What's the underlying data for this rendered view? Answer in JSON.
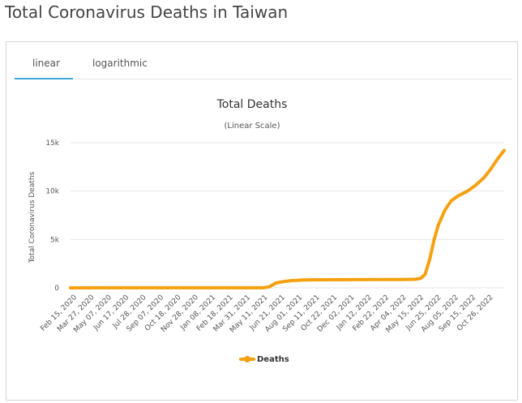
{
  "page": {
    "title": "Total Coronavirus Deaths in Taiwan"
  },
  "tabs": [
    {
      "label": "linear",
      "active": true
    },
    {
      "label": "logarithmic",
      "active": false
    }
  ],
  "chart_data": {
    "type": "line",
    "title": "Total Deaths",
    "subtitle": "(Linear Scale)",
    "ylabel": "Total Coronavirus Deaths",
    "xlabel": "",
    "ylim": [
      0,
      15000
    ],
    "yticks": [
      {
        "value": 0,
        "label": "0"
      },
      {
        "value": 5000,
        "label": "5k"
      },
      {
        "value": 10000,
        "label": "10k"
      },
      {
        "value": 15000,
        "label": "15k"
      }
    ],
    "xlim": [
      "2020-02-15",
      "2022-11-26"
    ],
    "xticks": [
      "Feb 15, 2020",
      "Mar 27, 2020",
      "May 07, 2020",
      "Jun 17, 2020",
      "Jul 28, 2020",
      "Sep 07, 2020",
      "Oct 18, 2020",
      "Nov 28, 2020",
      "Jan 08, 2021",
      "Feb 18, 2021",
      "Mar 31, 2021",
      "May 11, 2021",
      "Jun 21, 2021",
      "Aug 01, 2021",
      "Sep 11, 2021",
      "Oct 22, 2021",
      "Dec 02, 2021",
      "Jan 12, 2022",
      "Feb 22, 2022",
      "Apr 04, 2022",
      "May 15, 2022",
      "Jun 25, 2022",
      "Aug 05, 2022",
      "Sep 15, 2022",
      "Oct 26, 2022"
    ],
    "grid": true,
    "legend_position": "bottom-center",
    "color": "#f5a00f",
    "series": [
      {
        "name": "Deaths",
        "points": [
          {
            "x": "2020-02-15",
            "y": 1
          },
          {
            "x": "2020-06-01",
            "y": 7
          },
          {
            "x": "2021-01-01",
            "y": 7
          },
          {
            "x": "2021-05-11",
            "y": 12
          },
          {
            "x": "2021-05-25",
            "y": 100
          },
          {
            "x": "2021-06-10",
            "y": 500
          },
          {
            "x": "2021-06-25",
            "y": 630
          },
          {
            "x": "2021-07-15",
            "y": 750
          },
          {
            "x": "2021-08-15",
            "y": 820
          },
          {
            "x": "2021-10-01",
            "y": 840
          },
          {
            "x": "2021-12-01",
            "y": 850
          },
          {
            "x": "2022-02-01",
            "y": 853
          },
          {
            "x": "2022-04-01",
            "y": 855
          },
          {
            "x": "2022-05-01",
            "y": 880
          },
          {
            "x": "2022-05-15",
            "y": 1000
          },
          {
            "x": "2022-05-25",
            "y": 1400
          },
          {
            "x": "2022-06-05",
            "y": 3000
          },
          {
            "x": "2022-06-15",
            "y": 5000
          },
          {
            "x": "2022-06-25",
            "y": 6500
          },
          {
            "x": "2022-07-10",
            "y": 8000
          },
          {
            "x": "2022-07-25",
            "y": 9000
          },
          {
            "x": "2022-08-10",
            "y": 9500
          },
          {
            "x": "2022-09-01",
            "y": 10000
          },
          {
            "x": "2022-09-20",
            "y": 10600
          },
          {
            "x": "2022-10-10",
            "y": 11400
          },
          {
            "x": "2022-10-26",
            "y": 12300
          },
          {
            "x": "2022-11-10",
            "y": 13300
          },
          {
            "x": "2022-11-26",
            "y": 14200
          }
        ]
      }
    ]
  }
}
